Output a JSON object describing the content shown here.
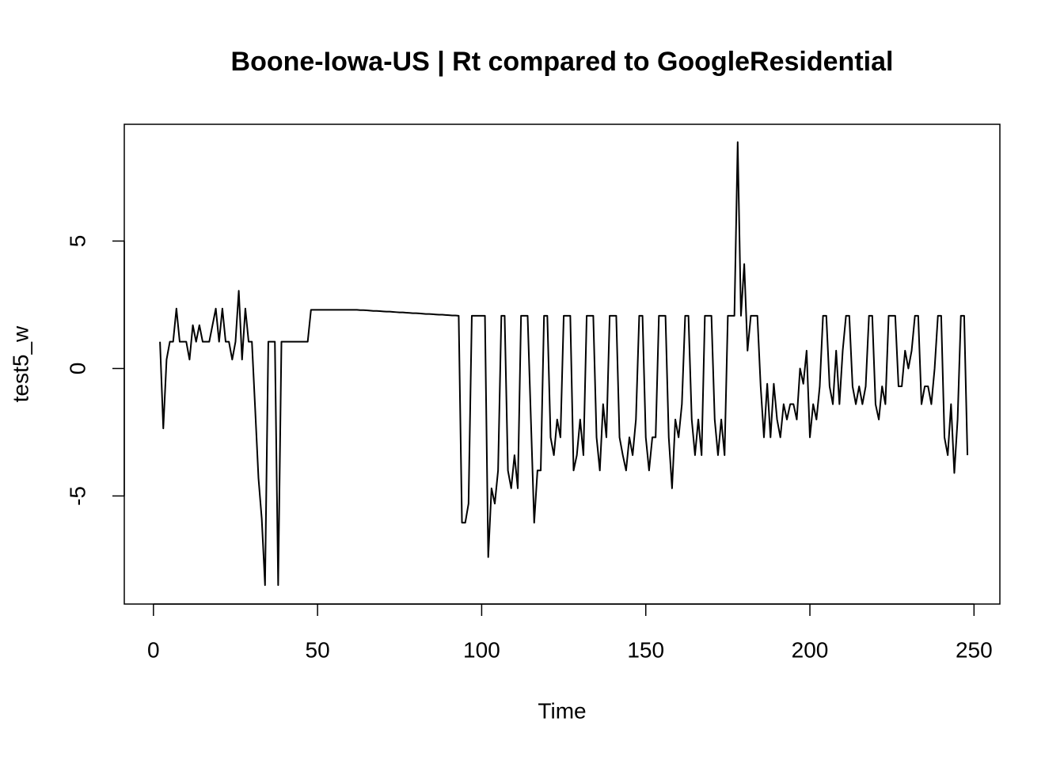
{
  "chart_data": {
    "type": "line",
    "title": "Boone-Iowa-US | Rt compared to GoogleResidential",
    "x_label": "Time",
    "y_label": "test5_w",
    "xlim": [
      -8.88,
      257.88
    ],
    "ylim": [
      -9.24,
      9.58
    ],
    "xticks": [
      0,
      50,
      100,
      150,
      200,
      250
    ],
    "yticks": [
      -5,
      0,
      5
    ],
    "series": [
      {
        "color": "#000000",
        "x": [
          2,
          3,
          4,
          5,
          6,
          7,
          8,
          9,
          10,
          11,
          12,
          13,
          14,
          15,
          16,
          17,
          18,
          19,
          20,
          21,
          22,
          23,
          24,
          25,
          26,
          27,
          28,
          29,
          30,
          31,
          32,
          33,
          34,
          35,
          36,
          37,
          38,
          39,
          40,
          41,
          42,
          43,
          44,
          45,
          46,
          47,
          48,
          49,
          50,
          51,
          52,
          53,
          54,
          55,
          56,
          57,
          58,
          59,
          60,
          61,
          62,
          63,
          64,
          65,
          66,
          67,
          68,
          69,
          70,
          71,
          72,
          73,
          74,
          75,
          76,
          77,
          78,
          79,
          80,
          81,
          82,
          83,
          84,
          85,
          86,
          87,
          88,
          89,
          90,
          91,
          92,
          93,
          94,
          95,
          96,
          97,
          98,
          99,
          100,
          101,
          102,
          103,
          104,
          105,
          106,
          107,
          108,
          109,
          110,
          111,
          112,
          113,
          114,
          115,
          116,
          117,
          118,
          119,
          120,
          121,
          122,
          123,
          124,
          125,
          126,
          127,
          128,
          129,
          130,
          131,
          132,
          133,
          134,
          135,
          136,
          137,
          138,
          139,
          140,
          141,
          142,
          143,
          144,
          145,
          146,
          147,
          148,
          149,
          150,
          151,
          152,
          153,
          154,
          155,
          156,
          157,
          158,
          159,
          160,
          161,
          162,
          163,
          164,
          165,
          166,
          167,
          168,
          169,
          170,
          171,
          172,
          173,
          174,
          175,
          176,
          177,
          178,
          179,
          180,
          181,
          182,
          183,
          184,
          185,
          186,
          187,
          188,
          189,
          190,
          191,
          192,
          193,
          194,
          195,
          196,
          197,
          198,
          199,
          200,
          201,
          202,
          203,
          204,
          205,
          206,
          207,
          208,
          209,
          210,
          211,
          212,
          213,
          214,
          215,
          216,
          217,
          218,
          219,
          220,
          221,
          222,
          223,
          224,
          225,
          226,
          227,
          228,
          229,
          230,
          231,
          232,
          233,
          234,
          235,
          236,
          237,
          238,
          239,
          240,
          241,
          242,
          243,
          244,
          245,
          246,
          247,
          248
        ],
        "values": [
          1.05,
          -2.35,
          0.35,
          1.05,
          1.05,
          2.35,
          1.05,
          1.05,
          1.05,
          0.35,
          1.7,
          1.05,
          1.7,
          1.05,
          1.05,
          1.05,
          1.7,
          2.35,
          1.05,
          2.35,
          1.05,
          1.05,
          0.35,
          1.05,
          3.05,
          0.35,
          2.35,
          1.05,
          1.05,
          -1.6,
          -4.3,
          -5.9,
          -8.5,
          1.05,
          1.05,
          1.05,
          -8.5,
          1.05,
          1.05,
          1.05,
          1.05,
          1.05,
          1.05,
          1.05,
          1.05,
          1.05,
          2.3,
          2.3,
          2.3,
          2.3,
          2.3,
          2.3,
          2.3,
          2.3,
          2.3,
          2.3,
          2.3,
          2.3,
          2.3,
          2.3,
          2.3,
          2.29,
          2.29,
          2.28,
          2.27,
          2.26,
          2.26,
          2.25,
          2.24,
          2.23,
          2.23,
          2.22,
          2.21,
          2.2,
          2.2,
          2.19,
          2.18,
          2.17,
          2.17,
          2.16,
          2.15,
          2.14,
          2.14,
          2.13,
          2.12,
          2.11,
          2.11,
          2.1,
          2.09,
          2.08,
          2.08,
          2.07,
          -6.05,
          -6.05,
          -5.3,
          2.07,
          2.07,
          2.07,
          2.07,
          2.07,
          -7.4,
          -4.7,
          -5.3,
          -4.0,
          2.07,
          2.07,
          -4.0,
          -4.7,
          -3.4,
          -4.7,
          2.07,
          2.07,
          2.07,
          -2.0,
          -6.05,
          -4.0,
          -4.0,
          2.07,
          2.07,
          -2.7,
          -3.4,
          -2.0,
          -2.7,
          2.07,
          2.07,
          2.07,
          -4.0,
          -3.4,
          -2.0,
          -3.4,
          2.07,
          2.07,
          2.07,
          -2.7,
          -4.0,
          -1.4,
          -2.7,
          2.07,
          2.07,
          2.07,
          -2.7,
          -3.4,
          -4.0,
          -2.7,
          -3.4,
          -2.0,
          2.07,
          2.07,
          -2.7,
          -4.0,
          -2.7,
          -2.7,
          2.07,
          2.07,
          2.07,
          -2.7,
          -4.7,
          -2.0,
          -2.7,
          -1.4,
          2.07,
          2.07,
          -2.0,
          -3.4,
          -2.0,
          -3.4,
          2.07,
          2.07,
          2.07,
          -2.0,
          -3.4,
          -2.0,
          -3.4,
          2.07,
          2.07,
          2.07,
          8.88,
          2.07,
          4.1,
          0.7,
          2.07,
          2.07,
          2.07,
          -0.7,
          -2.7,
          -0.6,
          -2.7,
          -0.6,
          -2.0,
          -2.7,
          -1.4,
          -2.0,
          -1.4,
          -1.4,
          -2.0,
          0.0,
          -0.6,
          0.7,
          -2.7,
          -1.4,
          -2.0,
          -0.7,
          2.07,
          2.07,
          -0.7,
          -1.4,
          0.7,
          -1.4,
          0.7,
          2.07,
          2.07,
          -0.7,
          -1.4,
          -0.7,
          -1.4,
          -0.7,
          2.07,
          2.07,
          -1.4,
          -2.0,
          -0.7,
          -1.4,
          2.07,
          2.07,
          2.07,
          -0.7,
          -0.7,
          0.7,
          0.0,
          0.7,
          2.07,
          2.07,
          -1.4,
          -0.7,
          -0.7,
          -1.4,
          0.0,
          2.07,
          2.07,
          -2.7,
          -3.4,
          -1.4,
          -4.1,
          -2.0,
          2.07,
          2.07,
          -3.4
        ]
      }
    ]
  }
}
